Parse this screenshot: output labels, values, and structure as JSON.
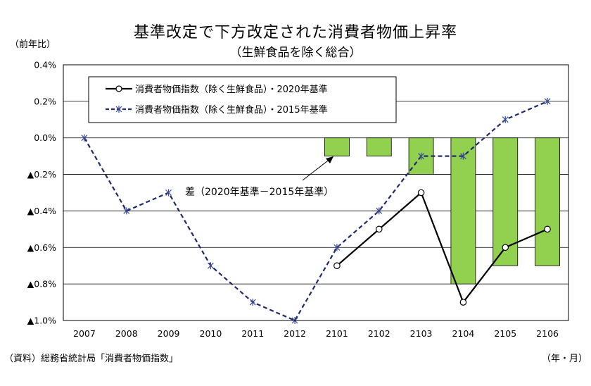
{
  "chart_data": {
    "type": "bar+line",
    "title": "基準改定で下方改定された消費者物価上昇率",
    "subtitle": "（生鮮食品を除く総合）",
    "y_unit_label": "（前年比）",
    "x_unit_label": "（年・月）",
    "source": "（資料）総務省統計局「消費者物価指数」",
    "categories": [
      "2007",
      "2008",
      "2009",
      "2010",
      "2011",
      "2012",
      "2101",
      "2102",
      "2103",
      "2104",
      "2105",
      "2106"
    ],
    "ylim": [
      -1.0,
      0.4
    ],
    "yticks": [
      {
        "value": 0.4,
        "label": "0.4%"
      },
      {
        "value": 0.2,
        "label": "0.2%"
      },
      {
        "value": 0.0,
        "label": "0.0%"
      },
      {
        "value": -0.2,
        "label": "▲0.2%"
      },
      {
        "value": -0.4,
        "label": "▲0.4%"
      },
      {
        "value": -0.6,
        "label": "▲0.6%"
      },
      {
        "value": -0.8,
        "label": "▲0.8%"
      },
      {
        "value": -1.0,
        "label": "▲1.0%"
      }
    ],
    "grid": true,
    "legend_position": "top-left",
    "series": [
      {
        "name": "消費者物価指数（除く生鮮食品）・2020年基準",
        "type": "line",
        "style": "solid",
        "marker": "circle",
        "color": "#000000",
        "values": [
          null,
          null,
          null,
          null,
          null,
          null,
          -0.7,
          -0.5,
          -0.3,
          -0.9,
          -0.6,
          -0.5
        ]
      },
      {
        "name": "消費者物価指数（除く生鮮食品）・2015年基準",
        "type": "line",
        "style": "dashed",
        "marker": "asterisk",
        "color": "#1f2a6b",
        "values": [
          0.0,
          -0.4,
          -0.3,
          -0.7,
          -0.9,
          -1.0,
          -0.6,
          -0.4,
          -0.1,
          -0.1,
          0.1,
          0.2
        ]
      },
      {
        "name": "差（2020年基準－2015年基準）",
        "type": "bar",
        "color": "#92d050",
        "values": [
          null,
          null,
          null,
          null,
          null,
          null,
          -0.1,
          -0.1,
          -0.2,
          -0.8,
          -0.7,
          -0.7
        ]
      }
    ],
    "annotation": "差（2020年基準－2015年基準）"
  }
}
